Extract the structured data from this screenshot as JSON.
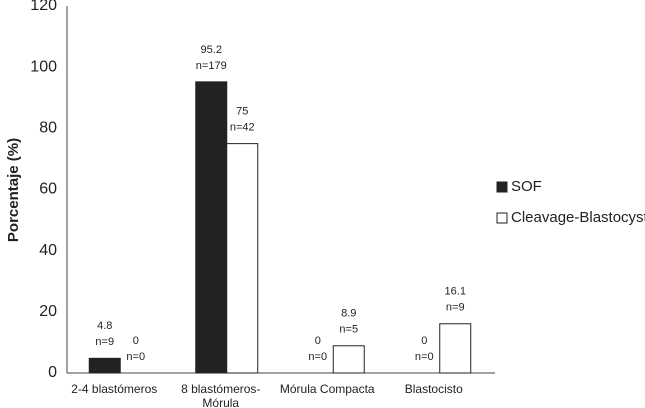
{
  "chart_data": {
    "type": "bar",
    "y_label": "Porcentaje (%)",
    "categories": [
      "2-4 blastómeros",
      "8 blastómeros-Mórula",
      "Mórula Compacta",
      "Blastocisto"
    ],
    "series": [
      {
        "name": "SOF",
        "color": "#222222",
        "values": [
          4.8,
          95.2,
          0,
          0
        ],
        "n_labels": [
          "n=9",
          "n=179",
          "n=0",
          "n=0"
        ]
      },
      {
        "name": "Cleavage-Blastocyst",
        "color": "#ffffff",
        "values": [
          0,
          75,
          8.9,
          16.1
        ],
        "n_labels": [
          "n=0",
          "n=42",
          "n=5",
          "n=9"
        ]
      }
    ],
    "ylim": [
      0,
      120
    ],
    "yticks": [
      0,
      20,
      40,
      60,
      80,
      100,
      120
    ],
    "grid": false,
    "legend": "right"
  }
}
